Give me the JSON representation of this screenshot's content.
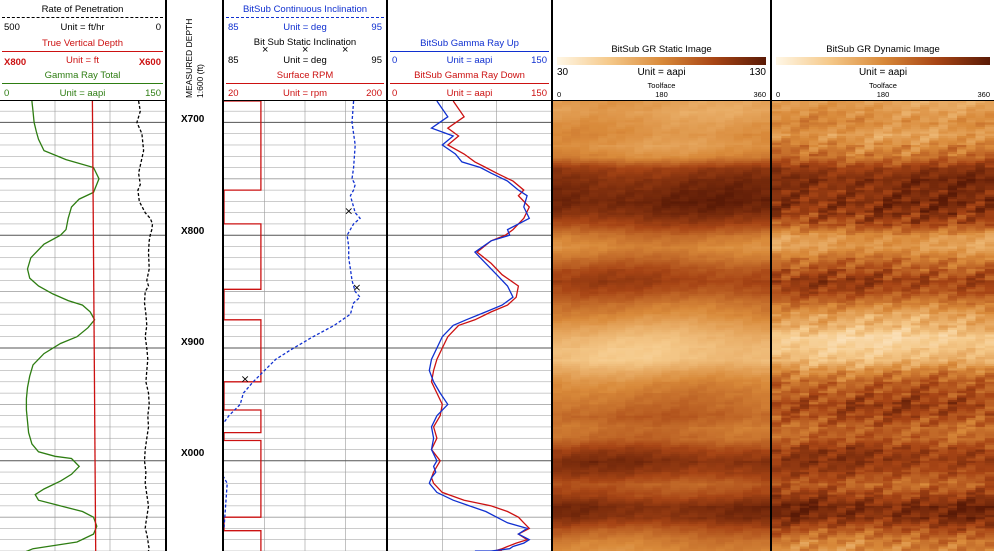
{
  "colors": {
    "rop": "#000000",
    "tvd": "#cc1111",
    "gamma_total": "#2e7d12",
    "continuous_incl": "#1030d0",
    "static_incl": "#000000",
    "rpm": "#cc1111",
    "gr_up": "#1030d0",
    "gr_down": "#cc1111",
    "grid": "#9a9a9a"
  },
  "track1": {
    "rop": {
      "title": "Rate of Penetration",
      "min": "500",
      "unit": "Unit = ft/hr",
      "max": "0"
    },
    "tvd": {
      "title": "True Vertical Depth",
      "min": "X800",
      "unit": "Unit = ft",
      "max": "X600"
    },
    "gamma": {
      "title": "Gamma Ray Total",
      "min": "0",
      "unit": "Unit = aapi",
      "max": "150"
    }
  },
  "depth_track": {
    "title": "MEASURED DEPTH",
    "scale": "1:600 (ft)",
    "labels": [
      "X700",
      "X800",
      "X900",
      "X000"
    ]
  },
  "track3": {
    "cont_incl": {
      "title": "BitSub Continuous Inclination",
      "min": "85",
      "unit": "Unit = deg",
      "max": "95"
    },
    "static_incl": {
      "title": "Bit Sub Static Inclination",
      "min": "85",
      "unit": "Unit = deg",
      "max": "95",
      "marker": "×"
    },
    "rpm": {
      "title": "Surface RPM",
      "min": "20",
      "unit": "Unit = rpm",
      "max": "200"
    }
  },
  "track4": {
    "up": {
      "title": "BitSub Gamma Ray Up",
      "min": "0",
      "unit": "Unit = aapi",
      "max": "150"
    },
    "down": {
      "title": "BitSub Gamma Ray Down",
      "min": "0",
      "unit": "Unit = aapi",
      "max": "150"
    }
  },
  "image_static": {
    "title": "BitSub GR Static Image",
    "scale_min": "30",
    "unit": "Unit = aapi",
    "scale_max": "130",
    "toolface": "Toolface",
    "tf_min": "0",
    "tf_mid": "180",
    "tf_max": "360"
  },
  "image_dynamic": {
    "title": "BitSub GR Dynamic Image",
    "scale_min": "",
    "unit": "Unit = aapi",
    "scale_max": "",
    "toolface": "Toolface",
    "tf_min": "0",
    "tf_mid": "180",
    "tf_max": "360"
  },
  "chart_data": {
    "type": "line",
    "depth_range": [
      681,
      1080
    ],
    "depth_ticks": [
      700,
      800,
      900,
      1000
    ],
    "series": [
      {
        "name": "Gamma Ray Total",
        "unit": "aapi",
        "range": [
          0,
          150
        ],
        "x": [
          29,
          30,
          31,
          33,
          35,
          40,
          60,
          85,
          90,
          85,
          72,
          65,
          62,
          60,
          55,
          40,
          28,
          25,
          27,
          35,
          48,
          62,
          75,
          82,
          86,
          80,
          70,
          55,
          40,
          30,
          27,
          25,
          24,
          24,
          25,
          26,
          29,
          35,
          50,
          65,
          72,
          65,
          55,
          40,
          32,
          35,
          55,
          75,
          85,
          88,
          85,
          70,
          50,
          30,
          25,
          24,
          24
        ],
        "depth": [
          681,
          690,
          700,
          708,
          715,
          725,
          733,
          740,
          750,
          762,
          768,
          775,
          785,
          795,
          800,
          808,
          820,
          830,
          838,
          845,
          852,
          858,
          862,
          868,
          875,
          882,
          890,
          896,
          905,
          915,
          925,
          935,
          945,
          955,
          965,
          975,
          985,
          992,
          996,
          998,
          1005,
          1012,
          1018,
          1025,
          1030,
          1035,
          1040,
          1045,
          1050,
          1058,
          1065,
          1072,
          1075,
          1078,
          1080,
          1080,
          1080
        ]
      },
      {
        "name": "True Vertical Depth",
        "unit": "ft",
        "range": [
          "X800",
          "X600"
        ],
        "x": [
          688,
          684
        ],
        "depth": [
          681,
          1080
        ]
      },
      {
        "name": "Rate of Penetration",
        "unit": "ft/hr",
        "range": [
          500,
          0
        ],
        "x": [
          80,
          75,
          85,
          70,
          65,
          80,
          75,
          82,
          78,
          60,
          45,
          38,
          40,
          45,
          48,
          50,
          48,
          55,
          50,
          60,
          62,
          58,
          55,
          60,
          55,
          52,
          55,
          58,
          50,
          48,
          52,
          50,
          55,
          60,
          62,
          58,
          60,
          55,
          50,
          55,
          58,
          60,
          55,
          52,
          50,
          48,
          50,
          52
        ],
        "depth": [
          681,
          690,
          700,
          710,
          725,
          745,
          755,
          760,
          770,
          780,
          785,
          790,
          795,
          800,
          805,
          815,
          830,
          840,
          845,
          850,
          860,
          870,
          880,
          890,
          900,
          910,
          920,
          930,
          940,
          950,
          960,
          970,
          980,
          990,
          1000,
          1010,
          1020,
          1030,
          1040,
          1050,
          1055,
          1060,
          1065,
          1070,
          1075,
          1078,
          1080,
          1080
        ]
      },
      {
        "name": "BitSub Continuous Inclination",
        "unit": "deg",
        "range": [
          85,
          95
        ],
        "x": [
          93.0,
          92.9,
          93.1,
          93.0,
          92.9,
          93.1,
          93.0,
          92.8,
          92.9,
          93.0,
          93.1,
          93.4,
          93.0,
          92.6,
          92.7,
          92.7,
          92.8,
          92.9,
          93.1,
          93.4,
          93.0,
          92.8,
          91.8,
          90.5,
          89.3,
          88.2,
          87.5,
          86.8,
          86.2,
          86.0,
          85.3,
          84.8,
          84.6,
          84.5,
          84.7,
          84.8,
          85.2,
          85.0
        ],
        "depth": [
          681,
          700,
          720,
          740,
          750,
          755,
          760,
          765,
          770,
          775,
          780,
          785,
          790,
          800,
          810,
          820,
          830,
          840,
          850,
          855,
          860,
          870,
          880,
          890,
          900,
          910,
          920,
          930,
          940,
          950,
          960,
          970,
          980,
          990,
          1000,
          1010,
          1020,
          1060
        ]
      },
      {
        "name": "Bit Sub Static Inclination",
        "unit": "deg",
        "range": [
          85,
          95
        ],
        "x": [
          92.7,
          93.2,
          86.3,
          84.8
        ],
        "depth": [
          778,
          846,
          927,
          1005
        ]
      },
      {
        "name": "Surface RPM",
        "unit": "rpm",
        "range": [
          20,
          200
        ],
        "x": [
          20,
          61,
          61,
          20,
          20,
          61,
          61,
          20,
          20,
          61,
          61,
          20,
          20,
          61,
          61,
          20,
          20,
          61,
          61,
          20,
          20,
          61,
          61
        ],
        "depth": [
          681,
          681,
          760,
          760,
          790,
          790,
          848,
          848,
          875,
          875,
          930,
          930,
          955,
          955,
          975,
          975,
          982,
          982,
          1050,
          1050,
          1062,
          1062,
          1080
        ]
      },
      {
        "name": "BitSub Gamma Ray Up",
        "unit": "aapi",
        "range": [
          0,
          150
        ],
        "x": [
          45,
          55,
          40,
          60,
          50,
          62,
          68,
          85,
          95,
          110,
          120,
          128,
          125,
          130,
          110,
          112,
          95,
          80,
          90,
          100,
          110,
          115,
          105,
          90,
          72,
          60,
          50,
          45,
          40,
          38,
          42,
          48,
          55,
          45,
          40,
          42,
          40,
          45,
          42,
          44,
          40,
          38,
          45,
          60,
          75,
          90,
          100,
          110,
          128,
          120,
          130,
          125,
          115,
          112,
          95,
          80
        ],
        "depth": [
          681,
          695,
          705,
          712,
          720,
          728,
          735,
          740,
          745,
          752,
          760,
          765,
          775,
          785,
          795,
          800,
          805,
          815,
          825,
          835,
          845,
          855,
          862,
          868,
          875,
          880,
          890,
          900,
          910,
          920,
          930,
          940,
          950,
          960,
          970,
          980,
          990,
          1000,
          1005,
          1010,
          1015,
          1020,
          1028,
          1035,
          1040,
          1045,
          1050,
          1055,
          1060,
          1065,
          1070,
          1073,
          1076,
          1078,
          1080,
          1080
        ]
      },
      {
        "name": "BitSub Gamma Ray Down",
        "unit": "aapi",
        "range": [
          0,
          150
        ],
        "x": [
          60,
          70,
          55,
          65,
          55,
          70,
          80,
          90,
          100,
          115,
          125,
          120,
          130,
          125,
          115,
          108,
          95,
          82,
          95,
          105,
          120,
          118,
          110,
          95,
          80,
          65,
          55,
          50,
          45,
          42,
          40,
          45,
          50,
          48,
          42,
          45,
          40,
          48,
          45,
          42,
          40,
          42,
          50,
          70,
          95,
          110,
          120,
          125,
          130,
          120,
          128,
          118,
          110,
          105,
          98,
          105
        ],
        "depth": [
          681,
          695,
          705,
          712,
          720,
          728,
          735,
          740,
          745,
          752,
          760,
          765,
          775,
          785,
          795,
          800,
          805,
          815,
          825,
          835,
          845,
          855,
          862,
          868,
          875,
          880,
          890,
          900,
          910,
          920,
          930,
          940,
          950,
          960,
          970,
          980,
          990,
          1000,
          1005,
          1010,
          1015,
          1020,
          1028,
          1035,
          1040,
          1045,
          1050,
          1055,
          1060,
          1065,
          1070,
          1073,
          1076,
          1078,
          1080,
          1080
        ]
      },
      {
        "name": "BitSub GR Static Image",
        "unit": "aapi",
        "range": [
          30,
          130
        ],
        "type": "heatmap",
        "depth": [
          681,
          690,
          700,
          710,
          720,
          730,
          740,
          750,
          760,
          770,
          780,
          790,
          800,
          810,
          820,
          830,
          840,
          850,
          860,
          870,
          880,
          890,
          900,
          910,
          920,
          930,
          940,
          950,
          960,
          970,
          980,
          990,
          1000,
          1010,
          1020,
          1030,
          1040,
          1050,
          1060,
          1070,
          1080
        ],
        "values": [
          72,
          70,
          75,
          78,
          74,
          82,
          110,
          118,
          122,
          125,
          118,
          105,
          88,
          80,
          90,
          102,
          108,
          100,
          88,
          80,
          70,
          62,
          58,
          58,
          70,
          80,
          86,
          90,
          95,
          88,
          92,
          108,
          118,
          110,
          96,
          105,
          120,
          116,
          98,
          86,
          80
        ]
      },
      {
        "name": "BitSub GR Dynamic Image",
        "unit": "aapi",
        "range": [
          30,
          130
        ],
        "type": "heatmap",
        "depth": [
          681,
          690,
          700,
          710,
          720,
          730,
          740,
          750,
          760,
          770,
          780,
          790,
          800,
          810,
          820,
          830,
          840,
          850,
          860,
          870,
          880,
          890,
          900,
          910,
          920,
          930,
          940,
          950,
          960,
          970,
          980,
          990,
          1000,
          1010,
          1020,
          1030,
          1040,
          1050,
          1060,
          1070,
          1080
        ],
        "values": [
          70,
          75,
          80,
          72,
          82,
          90,
          112,
          120,
          116,
          118,
          112,
          100,
          75,
          72,
          88,
          98,
          110,
          102,
          86,
          70,
          64,
          50,
          55,
          62,
          82,
          95,
          100,
          108,
          102,
          92,
          95,
          110,
          112,
          105,
          94,
          108,
          122,
          118,
          100,
          85,
          80
        ],
        "toolface_variation": [
          0.15,
          0.22,
          0.18,
          0.25,
          0.3,
          0.2,
          0.12,
          0.16,
          0.2,
          0.25,
          0.3,
          0.22,
          0.18,
          0.2,
          0.25,
          0.28,
          0.2,
          0.18,
          0.22,
          0.3,
          0.35,
          0.2,
          0.25,
          0.3,
          0.28,
          0.25,
          0.3,
          0.25,
          0.28,
          0.2,
          0.22,
          0.18,
          0.15,
          0.2,
          0.25,
          0.2,
          0.18,
          0.2,
          0.25,
          0.3,
          0.28
        ]
      }
    ]
  }
}
